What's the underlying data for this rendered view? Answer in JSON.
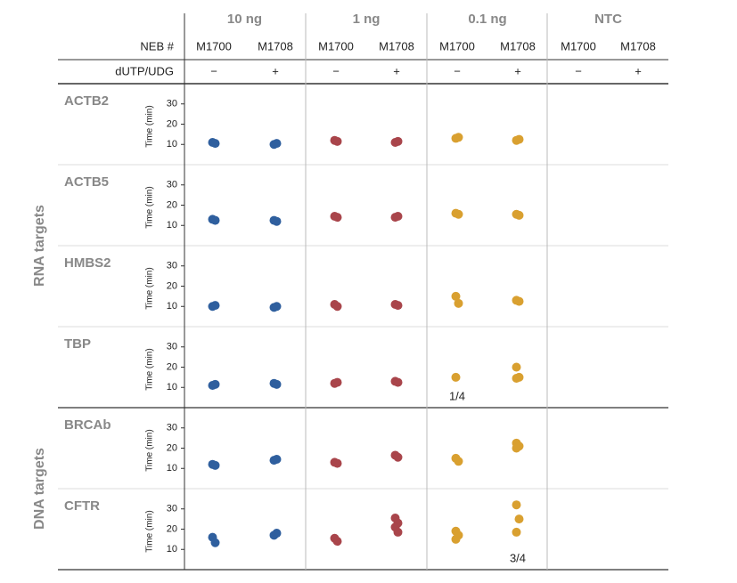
{
  "chart_data": {
    "type": "strip",
    "groups": [
      "10 ng",
      "1 ng",
      "0.1 ng",
      "NTC"
    ],
    "group_colors": [
      "#2f5f9e",
      "#a9454b",
      "#d9a030"
    ],
    "neb_label": "NEB #",
    "udg_label": "dUTP/UDG",
    "categories": [
      "M1700",
      "M1708",
      "M1700",
      "M1708",
      "M1700",
      "M1708",
      "M1700",
      "M1708"
    ],
    "udg": [
      "−",
      "+",
      "−",
      "+",
      "−",
      "+",
      "−",
      "+"
    ],
    "ylabel": "Time (min)",
    "ylim": [
      0,
      40
    ],
    "yticks": [
      10,
      20,
      30
    ],
    "sections": [
      {
        "label": "RNA targets",
        "rows": [
          {
            "name": "ACTB2",
            "values": [
              [
                11,
                10.5
              ],
              [
                10,
                10.5
              ],
              [
                12,
                11.5
              ],
              [
                11,
                11.5
              ],
              [
                13,
                13.5
              ],
              [
                12,
                12.5
              ],
              [],
              []
            ]
          },
          {
            "name": "ACTB5",
            "values": [
              [
                13,
                12.5
              ],
              [
                12.5,
                12
              ],
              [
                14.5,
                14
              ],
              [
                14,
                14.5
              ],
              [
                16,
                15.5
              ],
              [
                15.5,
                15
              ],
              [],
              []
            ]
          },
          {
            "name": "HMBS2",
            "values": [
              [
                10,
                10.5
              ],
              [
                9.5,
                10
              ],
              [
                11,
                10
              ],
              [
                11,
                10.5
              ],
              [
                15,
                11.5
              ],
              [
                13,
                12.5
              ],
              [],
              []
            ]
          },
          {
            "name": "TBP",
            "values": [
              [
                11,
                11.5
              ],
              [
                12,
                11.5
              ],
              [
                12,
                12.5
              ],
              [
                13,
                12.5
              ],
              [
                15
              ],
              [
                20,
                15,
                14.5
              ],
              [],
              []
            ],
            "annotation": {
              "column": 4,
              "text": "1/4"
            }
          }
        ]
      },
      {
        "label": "DNA targets",
        "rows": [
          {
            "name": "BRCAb",
            "values": [
              [
                12,
                11.5
              ],
              [
                14,
                14.5
              ],
              [
                13,
                12.5
              ],
              [
                16.5,
                15.5
              ],
              [
                15,
                13.5
              ],
              [
                22.5,
                21,
                20
              ],
              [],
              []
            ]
          },
          {
            "name": "CFTR",
            "values": [
              [
                16,
                13.3
              ],
              [
                17,
                18
              ],
              [
                15.5,
                14
              ],
              [
                25.5,
                23,
                21,
                18.5
              ],
              [
                19,
                17,
                15
              ],
              [
                32,
                25,
                18.5
              ],
              [],
              []
            ],
            "annotation": {
              "column": 5,
              "text": "3/4"
            }
          }
        ]
      }
    ]
  }
}
